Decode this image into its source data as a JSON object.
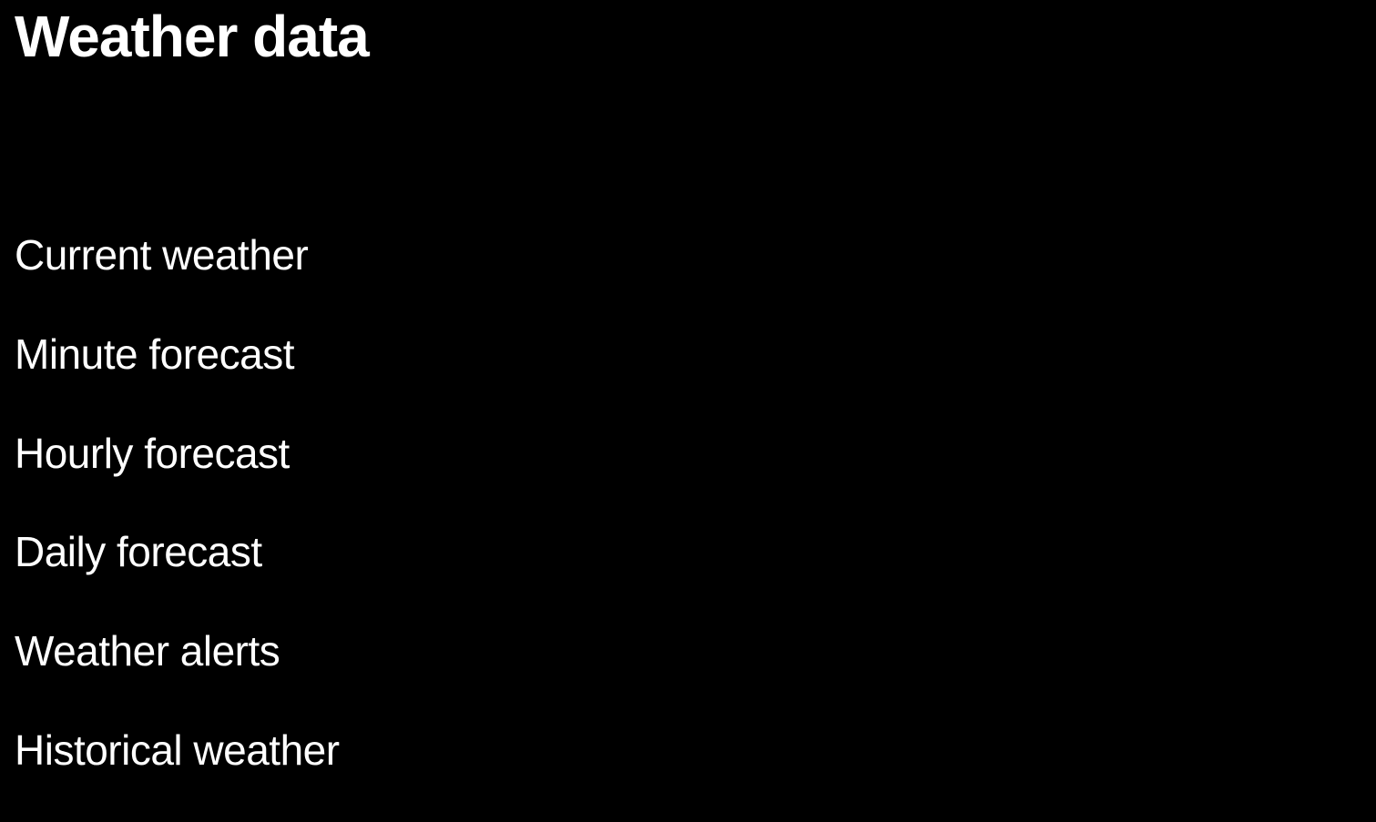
{
  "slide": {
    "title": "Weather data",
    "items": [
      {
        "label": "Current weather"
      },
      {
        "label": "Minute forecast"
      },
      {
        "label": "Hourly forecast"
      },
      {
        "label": "Daily forecast"
      },
      {
        "label": "Weather alerts"
      },
      {
        "label": "Historical weather"
      }
    ]
  },
  "colors": {
    "background": "#000000",
    "text": "#ffffff"
  }
}
